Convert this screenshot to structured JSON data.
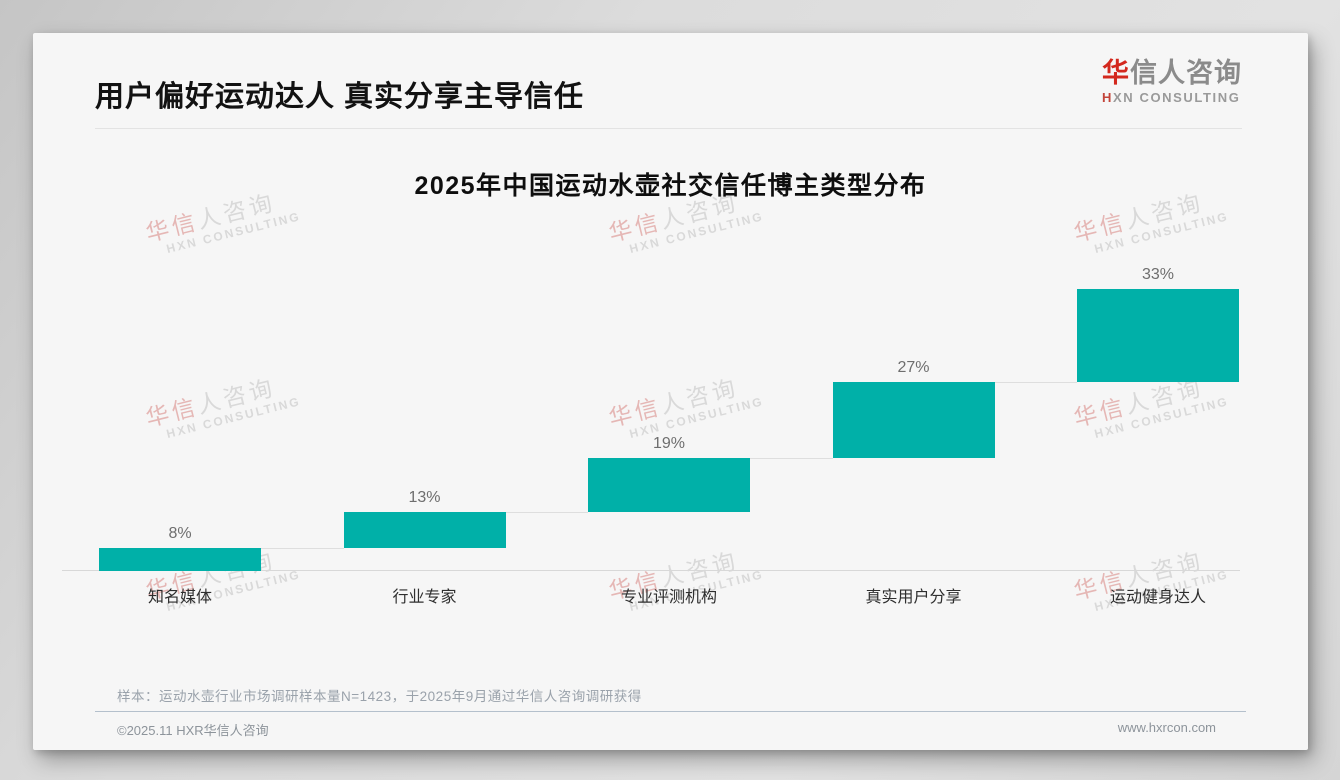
{
  "header": {
    "title": "用户偏好运动达人 真实分享主导信任"
  },
  "logo": {
    "cn_accent": "华",
    "cn_rest": "信人咨询",
    "en_accent": "H",
    "en_rest": "XN CONSULTING"
  },
  "chart_data": {
    "type": "bar",
    "subtype": "waterfall-ascending",
    "title": "2025年中国运动水壶社交信任博主类型分布",
    "categories": [
      "知名媒体",
      "行业专家",
      "专业评测机构",
      "真实用户分享",
      "运动健身达人"
    ],
    "values": [
      8,
      13,
      19,
      27,
      33
    ],
    "value_labels": [
      "8%",
      "13%",
      "19%",
      "27%",
      "33%"
    ],
    "unit": "%",
    "ylim": [
      0,
      100
    ],
    "grid": false,
    "legend": false,
    "bar_color": "#00b0a8",
    "connector_color": "#dedede",
    "axis_color": "#d8d8d8"
  },
  "footnote": {
    "text": "样本：运动水壶行业市场调研样本量N=1423，于2025年9月通过华信人咨询调研获得"
  },
  "footer": {
    "copyright": "©2025.11 HXR华信人咨询",
    "website": "www.hxrcon.com"
  },
  "watermark": {
    "line1_accent": "华信",
    "line1_rest": "人咨询",
    "line2": "HXN CONSULTING"
  },
  "colors": {
    "accent_red": "#d3281e",
    "teal": "#00b0a8"
  }
}
